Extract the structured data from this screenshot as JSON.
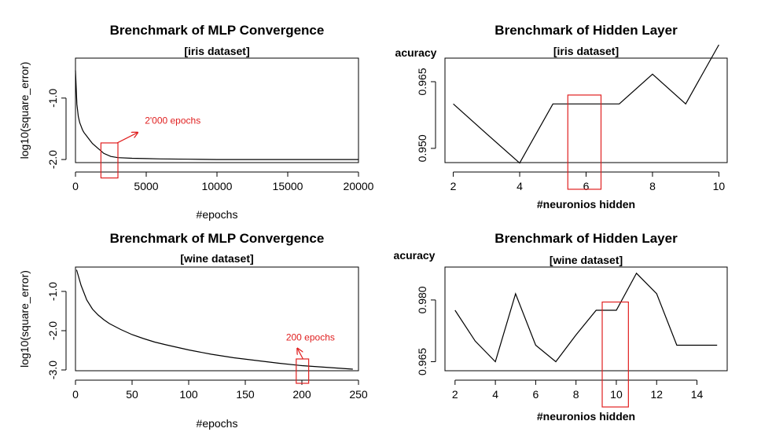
{
  "chart_data": [
    {
      "id": "p1",
      "type": "line",
      "title": "Brenchmark of MLP Convergence",
      "subtitle": "[iris dataset]",
      "xlabel": "#epochs",
      "ylabel": "log10(square_error)",
      "xlim": [
        0,
        20000
      ],
      "ylim": [
        -2.05,
        -0.35
      ],
      "xticks": [
        0,
        5000,
        10000,
        15000,
        20000
      ],
      "xtick_labels": [
        "0",
        "5000",
        "10000",
        "15000",
        "20000"
      ],
      "yticks": [
        -1.0,
        -2.0
      ],
      "ytick_labels": [
        "-1.0",
        "-2.0"
      ],
      "series": [
        {
          "x": [
            1,
            100,
            200,
            300,
            400,
            500,
            600,
            800,
            1000,
            1200,
            1500,
            1800,
            2000,
            2500,
            3000,
            4000,
            5000,
            6000,
            8000,
            10000,
            12000,
            14000,
            16000,
            18000,
            20000
          ],
          "values": [
            -0.55,
            -1.1,
            -1.3,
            -1.4,
            -1.46,
            -1.52,
            -1.56,
            -1.62,
            -1.68,
            -1.74,
            -1.8,
            -1.86,
            -1.9,
            -1.95,
            -1.97,
            -1.98,
            -1.985,
            -1.99,
            -1.995,
            -2.0,
            -2.0,
            -2.0,
            -2.0,
            -2.0,
            -2.0
          ]
        }
      ],
      "highlight": {
        "x": [
          1800,
          3000
        ],
        "y": [
          -2.3,
          -1.73
        ]
      },
      "annotation": {
        "text": "2'000 epochs",
        "color": "#e02020",
        "arrow_from": [
          2950,
          -1.73
        ],
        "arrow_to": [
          4400,
          -1.56
        ],
        "text_at": [
          4900,
          -1.42
        ]
      }
    },
    {
      "id": "p2",
      "type": "line",
      "title": "Brenchmark of Hidden Layer",
      "subtitle": "[iris dataset]",
      "xlabel": "#neuronios hidden",
      "ylabel": "acuracy",
      "xlim": [
        1.75,
        10.25
      ],
      "ylim": [
        0.9468,
        0.9703
      ],
      "xticks": [
        2,
        4,
        6,
        8,
        10
      ],
      "xtick_labels": [
        "2",
        "4",
        "6",
        "8",
        "10"
      ],
      "yticks": [
        0.95,
        0.965
      ],
      "ytick_labels": [
        "0.950",
        "0.965"
      ],
      "series": [
        {
          "x": [
            2,
            3,
            4,
            5,
            6,
            7,
            8,
            9,
            10
          ],
          "values": [
            0.96,
            0.9533,
            0.9467,
            0.96,
            0.96,
            0.96,
            0.9667,
            0.96,
            0.9733
          ]
        }
      ],
      "highlight": {
        "x": [
          5.45,
          6.45
        ],
        "y": [
          0.9408,
          0.962
        ]
      }
    },
    {
      "id": "p3",
      "type": "line",
      "title": "Brenchmark of MLP Convergence",
      "subtitle": "[wine dataset]",
      "xlabel": "#epochs",
      "ylabel": "log10(square_error)",
      "xlim": [
        0,
        250
      ],
      "ylim": [
        -3.02,
        -0.38
      ],
      "xticks": [
        0,
        50,
        100,
        150,
        200,
        250
      ],
      "xtick_labels": [
        "0",
        "50",
        "100",
        "150",
        "200",
        "250"
      ],
      "yticks": [
        -1.0,
        -2.0,
        -3.0
      ],
      "ytick_labels": [
        "-1.0",
        "-2.0",
        "-3.0"
      ],
      "series": [
        {
          "x": [
            1,
            5,
            10,
            15,
            20,
            25,
            30,
            40,
            50,
            60,
            70,
            80,
            100,
            120,
            140,
            160,
            180,
            200,
            220,
            245
          ],
          "values": [
            -0.45,
            -0.85,
            -1.22,
            -1.45,
            -1.6,
            -1.72,
            -1.82,
            -1.97,
            -2.1,
            -2.2,
            -2.29,
            -2.36,
            -2.49,
            -2.6,
            -2.69,
            -2.76,
            -2.83,
            -2.89,
            -2.93,
            -2.98
          ]
        }
      ],
      "highlight": {
        "x": [
          195,
          206
        ],
        "y": [
          -3.34,
          -2.72
        ]
      },
      "annotation": {
        "text": "200 epochs",
        "color": "#e02020",
        "arrow_from": [
          201,
          -2.72
        ],
        "arrow_to": [
          196,
          -2.45
        ],
        "text_at": [
          186,
          -2.25
        ]
      }
    },
    {
      "id": "p4",
      "type": "line",
      "title": "Brenchmark of Hidden Layer",
      "subtitle": "[wine dataset]",
      "xlabel": "#neuronios hidden",
      "ylabel": "acuracy",
      "xlim": [
        1.5,
        15.5
      ],
      "ylim": [
        0.9628,
        0.988
      ],
      "xticks": [
        2,
        4,
        6,
        8,
        10,
        12,
        14
      ],
      "xtick_labels": [
        "2",
        "4",
        "6",
        "8",
        "10",
        "12",
        "14"
      ],
      "yticks": [
        0.965,
        0.98
      ],
      "ytick_labels": [
        "0.965",
        "0.980"
      ],
      "series": [
        {
          "x": [
            2,
            3,
            4,
            5,
            6,
            7,
            8,
            9,
            10,
            11,
            12,
            13,
            14,
            15
          ],
          "values": [
            0.9775,
            0.97,
            0.965,
            0.9815,
            0.969,
            0.965,
            0.9715,
            0.9775,
            0.9775,
            0.9865,
            0.9815,
            0.969,
            0.969,
            0.969
          ]
        }
      ],
      "highlight": {
        "x": [
          9.3,
          10.6
        ],
        "y": [
          0.954,
          0.9795
        ]
      }
    }
  ]
}
